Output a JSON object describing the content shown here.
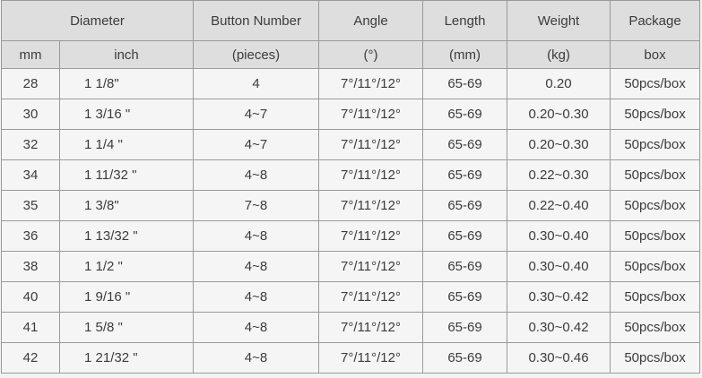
{
  "header": {
    "group_row": [
      {
        "label": "Diameter"
      },
      {
        "label": "Button Number"
      },
      {
        "label": "Angle"
      },
      {
        "label": "Length"
      },
      {
        "label": "Weight"
      },
      {
        "label": "Package"
      }
    ],
    "unit_row": [
      "mm",
      "inch",
      "(pieces)",
      "(°)",
      "(mm)",
      "(kg)",
      "box"
    ]
  },
  "rows": [
    {
      "mm": "28",
      "inch": "1 1/8\"",
      "buttons": "4",
      "angle": "7°/11°/12°",
      "length": "65-69",
      "weight": "0.20",
      "package": "50pcs/box"
    },
    {
      "mm": "30",
      "inch": "1 3/16 \"",
      "buttons": "4~7",
      "angle": "7°/11°/12°",
      "length": "65-69",
      "weight": "0.20~0.30",
      "package": "50pcs/box"
    },
    {
      "mm": "32",
      "inch": "1 1/4 \"",
      "buttons": "4~7",
      "angle": "7°/11°/12°",
      "length": "65-69",
      "weight": "0.20~0.30",
      "package": "50pcs/box"
    },
    {
      "mm": "34",
      "inch": "1 11/32 \"",
      "buttons": "4~8",
      "angle": "7°/11°/12°",
      "length": "65-69",
      "weight": "0.22~0.30",
      "package": "50pcs/box"
    },
    {
      "mm": "35",
      "inch": "1 3/8\"",
      "buttons": "7~8",
      "angle": "7°/11°/12°",
      "length": "65-69",
      "weight": "0.22~0.40",
      "package": "50pcs/box"
    },
    {
      "mm": "36",
      "inch": "1 13/32 \"",
      "buttons": "4~8",
      "angle": "7°/11°/12°",
      "length": "65-69",
      "weight": "0.30~0.40",
      "package": "50pcs/box"
    },
    {
      "mm": "38",
      "inch": "1 1/2 \"",
      "buttons": "4~8",
      "angle": "7°/11°/12°",
      "length": "65-69",
      "weight": "0.30~0.40",
      "package": "50pcs/box"
    },
    {
      "mm": "40",
      "inch": "1 9/16 \"",
      "buttons": "4~8",
      "angle": "7°/11°/12°",
      "length": "65-69",
      "weight": "0.30~0.42",
      "package": "50pcs/box"
    },
    {
      "mm": "41",
      "inch": "1 5/8 \"",
      "buttons": "4~8",
      "angle": "7°/11°/12°",
      "length": "65-69",
      "weight": "0.30~0.42",
      "package": "50pcs/box"
    },
    {
      "mm": "42",
      "inch": "1 21/32 \"",
      "buttons": "4~8",
      "angle": "7°/11°/12°",
      "length": "65-69",
      "weight": "0.30~0.46",
      "package": "50pcs/box"
    }
  ],
  "colors": {
    "header_bg": "#dedede",
    "row_bg": "#f5f5f5",
    "border": "#9a9a9a",
    "text": "#3c3c3c"
  }
}
